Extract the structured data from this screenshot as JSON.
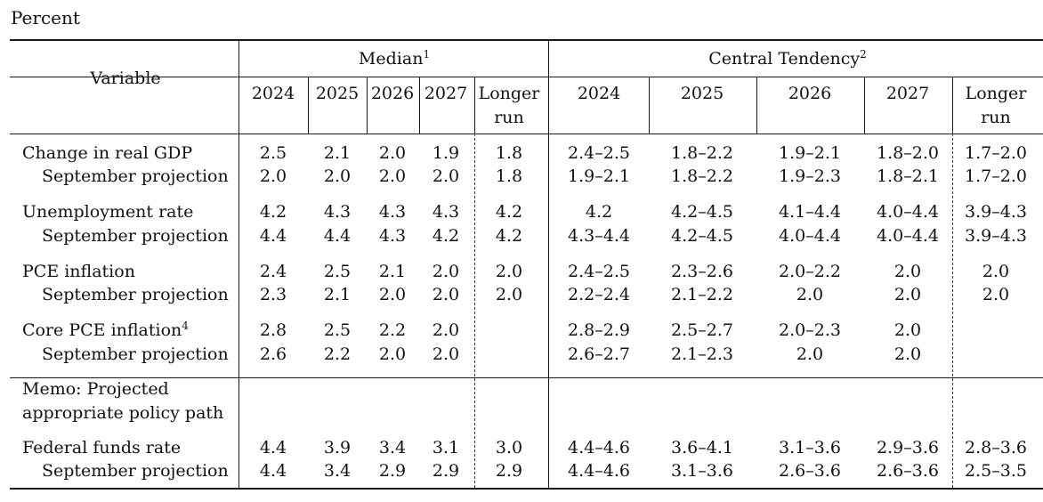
{
  "unit_label": "Percent",
  "header": {
    "variable": "Variable",
    "median": {
      "label": "Median",
      "note": "1"
    },
    "central_tendency": {
      "label": "Central Tendency",
      "note": "2"
    },
    "median_years": [
      "2024",
      "2025",
      "2026",
      "2027"
    ],
    "central_years": [
      "2024",
      "2025",
      "2026",
      "2027"
    ],
    "longer_run": [
      "Longer",
      "run"
    ]
  },
  "rows": [
    {
      "label": "Change in real GDP",
      "median": [
        "2.5",
        "2.1",
        "2.0",
        "1.9",
        "1.8"
      ],
      "central": [
        "2.4–2.5",
        "1.8–2.2",
        "1.9–2.1",
        "1.8–2.0",
        "1.7–2.0"
      ]
    },
    {
      "label": "September projection",
      "median": [
        "2.0",
        "2.0",
        "2.0",
        "2.0",
        "1.8"
      ],
      "central": [
        "1.9–2.1",
        "1.8–2.2",
        "1.9–2.3",
        "1.8–2.1",
        "1.7–2.0"
      ]
    },
    {
      "label": "Unemployment rate",
      "median": [
        "4.2",
        "4.3",
        "4.3",
        "4.3",
        "4.2"
      ],
      "central": [
        "4.2",
        "4.2–4.5",
        "4.1–4.4",
        "4.0–4.4",
        "3.9–4.3"
      ]
    },
    {
      "label": "September projection",
      "median": [
        "4.4",
        "4.4",
        "4.3",
        "4.2",
        "4.2"
      ],
      "central": [
        "4.3–4.4",
        "4.2–4.5",
        "4.0–4.4",
        "4.0–4.4",
        "3.9–4.3"
      ]
    },
    {
      "label": "PCE inflation",
      "median": [
        "2.4",
        "2.5",
        "2.1",
        "2.0",
        "2.0"
      ],
      "central": [
        "2.4–2.5",
        "2.3–2.6",
        "2.0–2.2",
        "2.0",
        "2.0"
      ]
    },
    {
      "label": "September projection",
      "median": [
        "2.3",
        "2.1",
        "2.0",
        "2.0",
        "2.0"
      ],
      "central": [
        "2.2–2.4",
        "2.1–2.2",
        "2.0",
        "2.0",
        "2.0"
      ]
    },
    {
      "label": "Core PCE inflation",
      "note": "4",
      "median": [
        "2.8",
        "2.5",
        "2.2",
        "2.0",
        ""
      ],
      "central": [
        "2.8–2.9",
        "2.5–2.7",
        "2.0–2.3",
        "2.0",
        ""
      ]
    },
    {
      "label": "September projection",
      "median": [
        "2.6",
        "2.2",
        "2.0",
        "2.0",
        ""
      ],
      "central": [
        "2.6–2.7",
        "2.1–2.3",
        "2.0",
        "2.0",
        ""
      ]
    }
  ],
  "memo": [
    "Memo: Projected",
    "appropriate policy path"
  ],
  "memo_rows": [
    {
      "label": "Federal funds rate",
      "median": [
        "4.4",
        "3.9",
        "3.4",
        "3.1",
        "3.0"
      ],
      "central": [
        "4.4–4.6",
        "3.6–4.1",
        "3.1–3.6",
        "2.9–3.6",
        "2.8–3.6"
      ]
    },
    {
      "label": "September projection",
      "median": [
        "4.4",
        "3.4",
        "2.9",
        "2.9",
        "2.9"
      ],
      "central": [
        "4.4–4.6",
        "3.1–3.6",
        "2.6–3.6",
        "2.6–3.6",
        "2.5–3.5"
      ]
    }
  ]
}
